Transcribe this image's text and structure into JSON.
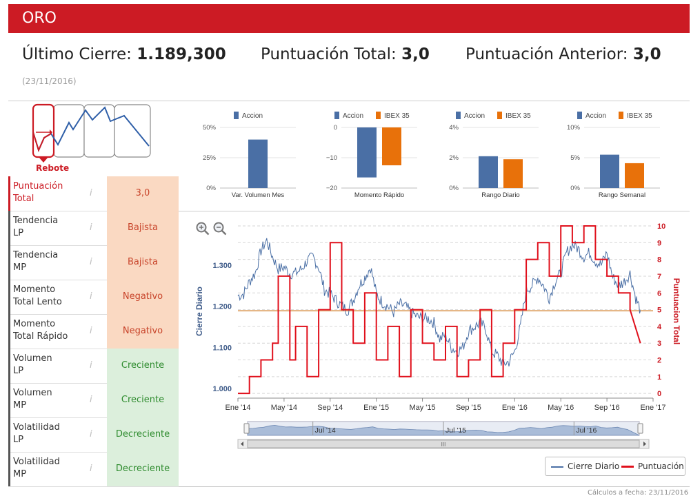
{
  "header": {
    "title": "ORO",
    "accent": "#cc1b24"
  },
  "stats": {
    "ultimo_label": "Último Cierre: ",
    "ultimo_value": "1.189,300",
    "total_label": "Puntuación Total: ",
    "total_value": "3,0",
    "anterior_label": "Puntuación Anterior: ",
    "anterior_value": "3,0",
    "date": "(23/11/2016)"
  },
  "pattern": {
    "label": "Rebote"
  },
  "indicators": [
    {
      "label_1": "Puntuación",
      "label_2": "Total",
      "value": "3,0",
      "color": "#fad9c2",
      "text_color": "#c8442a"
    },
    {
      "label_1": "Tendencia",
      "label_2": "LP",
      "value": "Bajista",
      "color": "#fad9c2",
      "text_color": "#c8442a"
    },
    {
      "label_1": "Tendencia",
      "label_2": "MP",
      "value": "Bajista",
      "color": "#fad9c2",
      "text_color": "#c8442a"
    },
    {
      "label_1": "Momento",
      "label_2": "Total Lento",
      "value": "Negativo",
      "color": "#fad9c2",
      "text_color": "#c8442a"
    },
    {
      "label_1": "Momento",
      "label_2": "Total Rápido",
      "value": "Negativo",
      "color": "#fad9c2",
      "text_color": "#c8442a"
    },
    {
      "label_1": "Volumen",
      "label_2": "LP",
      "value": "Creciente",
      "color": "#dcefdc",
      "text_color": "#2e8b2e"
    },
    {
      "label_1": "Volumen",
      "label_2": "MP",
      "value": "Creciente",
      "color": "#dcefdc",
      "text_color": "#2e8b2e"
    },
    {
      "label_1": "Volatilidad",
      "label_2": "LP",
      "value": "Decreciente",
      "color": "#dcefdc",
      "text_color": "#2e8b2e"
    },
    {
      "label_1": "Volatilidad",
      "label_2": "MP",
      "value": "Decreciente",
      "color": "#dcefdc",
      "text_color": "#2e8b2e"
    }
  ],
  "info_glyph": "i",
  "chart_data": [
    {
      "type": "bar",
      "title": "",
      "legend": [
        "Accion"
      ],
      "categories": [
        "Var. Volumen Mes"
      ],
      "series": [
        {
          "name": "Accion",
          "values": [
            40
          ],
          "color": "#4a6fa5"
        }
      ],
      "ylim": [
        0,
        50
      ],
      "ticks": [
        "50%",
        "25%",
        "0%"
      ],
      "xlabel": "Var. Volumen Mes"
    },
    {
      "type": "bar",
      "title": "",
      "legend": [
        "Accion",
        "IBEX 35"
      ],
      "categories": [
        "Momento Rápido"
      ],
      "series": [
        {
          "name": "Accion",
          "values": [
            -16.5
          ],
          "color": "#4a6fa5"
        },
        {
          "name": "IBEX 35",
          "values": [
            -12.5
          ],
          "color": "#e8710a"
        }
      ],
      "ylim": [
        -20,
        0
      ],
      "ticks": [
        "0",
        "−10",
        "−20"
      ],
      "xlabel": "Momento Rápido"
    },
    {
      "type": "bar",
      "title": "",
      "legend": [
        "Accion",
        "IBEX 35"
      ],
      "categories": [
        "Rango Diario"
      ],
      "series": [
        {
          "name": "Accion",
          "values": [
            2.1
          ],
          "color": "#4a6fa5"
        },
        {
          "name": "IBEX 35",
          "values": [
            1.9
          ],
          "color": "#e8710a"
        }
      ],
      "ylim": [
        0,
        4
      ],
      "ticks": [
        "4%",
        "2%",
        "0%"
      ],
      "xlabel": "Rango Diario"
    },
    {
      "type": "bar",
      "title": "",
      "legend": [
        "Accion",
        "IBEX 35"
      ],
      "categories": [
        "Rango Semanal"
      ],
      "series": [
        {
          "name": "Accion",
          "values": [
            5.5
          ],
          "color": "#4a6fa5"
        },
        {
          "name": "IBEX 35",
          "values": [
            4.1
          ],
          "color": "#e8710a"
        }
      ],
      "ylim": [
        0,
        10
      ],
      "ticks": [
        "10%",
        "5%",
        "0%"
      ],
      "xlabel": "Rango Semanal"
    },
    {
      "type": "line",
      "title": "",
      "ylabel": "Cierre Diario",
      "y2label": "Puntuacion Total",
      "ylim": [
        0.98,
        1.395
      ],
      "y2lim": [
        -0.2,
        10
      ],
      "yticks": [
        "1.300",
        "1.200",
        "1.100",
        "1.000"
      ],
      "ytick_values": [
        1.3,
        1.2,
        1.1,
        1.0
      ],
      "y2ticks": [
        "10",
        "9",
        "8",
        "7",
        "6",
        "5",
        "4",
        "3",
        "2",
        "1",
        "0"
      ],
      "xticks": [
        "Ene '14",
        "May '14",
        "Sep '14",
        "Ene '15",
        "May '15",
        "Sep '15",
        "Ene '16",
        "May '16",
        "Sep '16",
        "Ene '17"
      ],
      "navigator_labels": [
        "Jul '14",
        "Jul '15",
        "Jul '16"
      ],
      "reference_line": 1.189,
      "x_range_months": [
        0,
        36
      ],
      "series": [
        {
          "name": "Cierre Diario",
          "color": "#4a6fa5",
          "x": [
            0,
            0.5,
            1,
            1.5,
            2,
            2.5,
            3,
            3.5,
            4,
            4.5,
            5,
            5.5,
            6,
            6.5,
            7,
            7.5,
            8,
            8.5,
            9,
            9.5,
            10,
            10.5,
            11,
            11.5,
            12,
            12.5,
            13,
            13.5,
            14,
            14.5,
            15,
            15.5,
            16,
            16.5,
            17,
            17.5,
            18,
            18.5,
            19,
            19.5,
            20,
            20.5,
            21,
            21.5,
            22,
            22.5,
            23,
            23.5,
            24,
            24.5,
            25,
            25.5,
            26,
            26.5,
            27,
            27.5,
            28,
            28.5,
            29,
            29.5,
            30,
            30.5,
            31,
            31.5,
            32,
            32.5,
            33,
            33.5,
            34,
            34.5,
            34.9
          ],
          "values": [
            1.225,
            1.23,
            1.26,
            1.28,
            1.335,
            1.36,
            1.32,
            1.29,
            1.295,
            1.28,
            1.28,
            1.29,
            1.31,
            1.32,
            1.295,
            1.24,
            1.23,
            1.215,
            1.2,
            1.19,
            1.215,
            1.25,
            1.27,
            1.295,
            1.23,
            1.21,
            1.2,
            1.185,
            1.205,
            1.2,
            1.185,
            1.175,
            1.17,
            1.17,
            1.16,
            1.12,
            1.13,
            1.1,
            1.09,
            1.1,
            1.14,
            1.15,
            1.16,
            1.145,
            1.09,
            1.08,
            1.06,
            1.065,
            1.09,
            1.15,
            1.24,
            1.25,
            1.27,
            1.25,
            1.22,
            1.26,
            1.28,
            1.33,
            1.35,
            1.34,
            1.32,
            1.33,
            1.31,
            1.3,
            1.33,
            1.27,
            1.25,
            1.26,
            1.28,
            1.22,
            1.19
          ]
        },
        {
          "name": "Puntuación",
          "color": "#e0101c",
          "x": [
            0,
            1,
            1,
            2,
            2,
            3,
            3,
            3.5,
            3.5,
            4.5,
            4.5,
            5,
            5,
            6,
            6,
            7,
            7,
            8,
            8,
            9,
            9,
            10,
            10,
            11,
            11,
            12,
            12,
            13,
            13,
            14,
            14,
            15,
            15,
            16,
            16,
            17,
            17,
            18,
            18,
            19,
            19,
            20,
            20,
            21,
            21,
            22,
            22,
            23,
            23,
            24,
            24,
            25,
            25,
            26,
            26,
            27,
            27,
            28,
            28,
            29,
            29,
            30,
            30,
            31,
            31,
            32,
            32,
            33,
            33,
            34,
            34,
            34.9
          ],
          "values": [
            0,
            0,
            1,
            1,
            2,
            2,
            3,
            3,
            7,
            7,
            2,
            2,
            4,
            4,
            1,
            1,
            5,
            5,
            9,
            9,
            5,
            5,
            3,
            3,
            6,
            6,
            2,
            2,
            4,
            4,
            1,
            1,
            5,
            5,
            3,
            3,
            2,
            2,
            4,
            4,
            1,
            1,
            2,
            2,
            5,
            5,
            1,
            1,
            3,
            3,
            5,
            5,
            8,
            8,
            9,
            9,
            7,
            7,
            10,
            10,
            9,
            9,
            10,
            10,
            8,
            8,
            7,
            7,
            6,
            6,
            5,
            3
          ]
        }
      ]
    }
  ],
  "legend": {
    "item1": "Cierre Diario",
    "item2": "Puntuación"
  },
  "footnote": "Cálculos a fecha: 23/11/2016",
  "navigator": {
    "grip": "III"
  }
}
